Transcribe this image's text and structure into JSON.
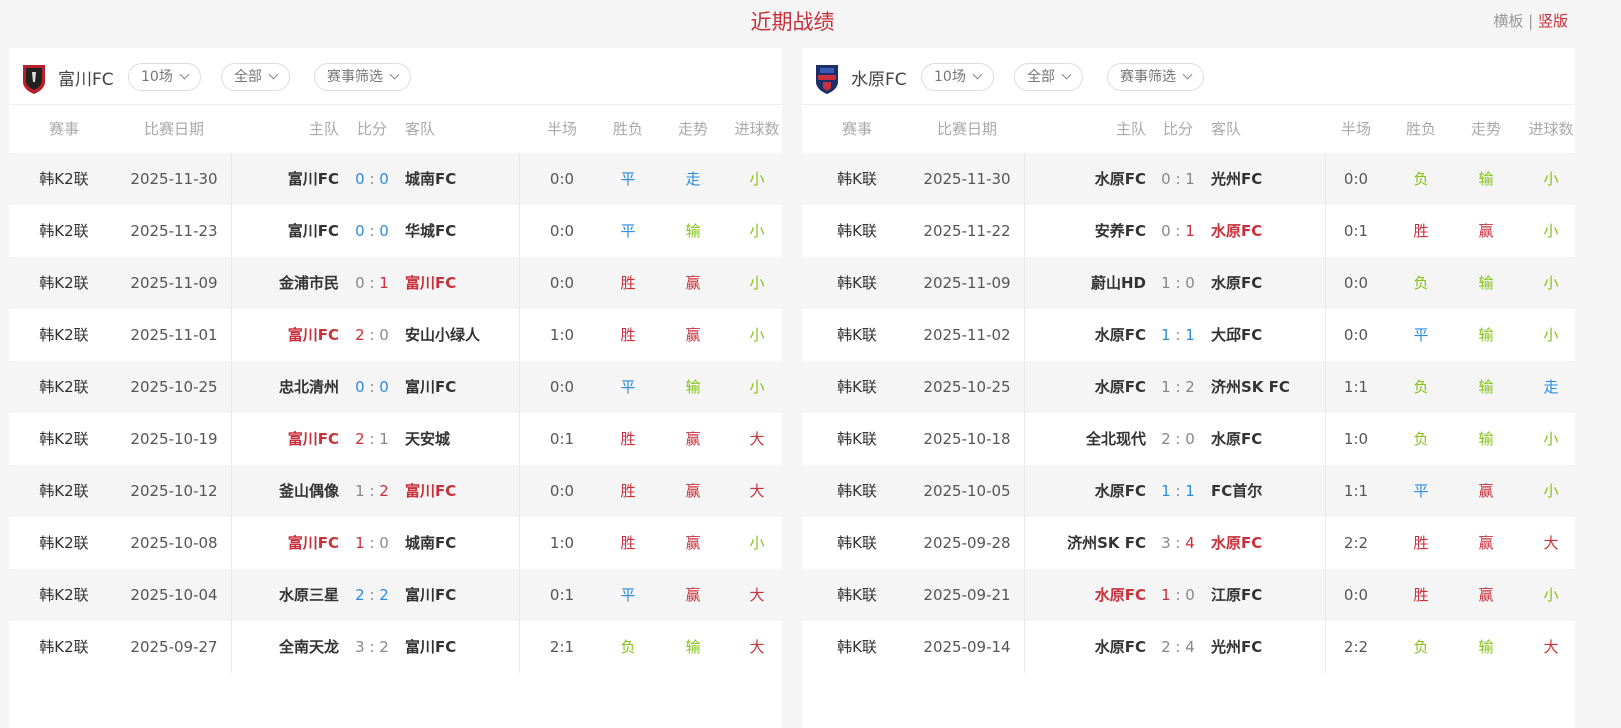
{
  "page": {
    "title": "近期战绩",
    "layout_horizontal": "横板",
    "layout_separator": "|",
    "layout_vertical": "竖版"
  },
  "colors": {
    "red": "#c8303c",
    "blue": "#2b8de0",
    "green": "#86c21a"
  },
  "columns": {
    "comp": "赛事",
    "date": "比赛日期",
    "home": "主队",
    "score": "比分",
    "away": "客队",
    "ht": "半场",
    "result": "胜负",
    "trend": "走势",
    "goals": "进球数"
  },
  "panels": [
    {
      "team": "富川FC",
      "logo_icon": "bucheon-fc-crest-icon",
      "filters": {
        "count": "10场",
        "scope": "全部",
        "competition": "赛事筛选"
      },
      "rows": [
        {
          "comp": "韩K2联",
          "date": "2025-11-30",
          "home": "富川FC",
          "hs": "0",
          "as": "0",
          "away": "城南FC",
          "ht": "0:0",
          "result": "平",
          "trend": "走",
          "goals": "小"
        },
        {
          "comp": "韩K2联",
          "date": "2025-11-23",
          "home": "富川FC",
          "hs": "0",
          "as": "0",
          "away": "华城FC",
          "ht": "0:0",
          "result": "平",
          "trend": "输",
          "goals": "小"
        },
        {
          "comp": "韩K2联",
          "date": "2025-11-09",
          "home": "金浦市民",
          "hs": "0",
          "as": "1",
          "away": "富川FC",
          "ht": "0:0",
          "result": "胜",
          "trend": "赢",
          "goals": "小"
        },
        {
          "comp": "韩K2联",
          "date": "2025-11-01",
          "home": "富川FC",
          "hs": "2",
          "as": "0",
          "away": "安山小绿人",
          "ht": "1:0",
          "result": "胜",
          "trend": "赢",
          "goals": "小"
        },
        {
          "comp": "韩K2联",
          "date": "2025-10-25",
          "home": "忠北清州",
          "hs": "0",
          "as": "0",
          "away": "富川FC",
          "ht": "0:0",
          "result": "平",
          "trend": "输",
          "goals": "小"
        },
        {
          "comp": "韩K2联",
          "date": "2025-10-19",
          "home": "富川FC",
          "hs": "2",
          "as": "1",
          "away": "天安城",
          "ht": "0:1",
          "result": "胜",
          "trend": "赢",
          "goals": "大"
        },
        {
          "comp": "韩K2联",
          "date": "2025-10-12",
          "home": "釜山偶像",
          "hs": "1",
          "as": "2",
          "away": "富川FC",
          "ht": "0:0",
          "result": "胜",
          "trend": "赢",
          "goals": "大"
        },
        {
          "comp": "韩K2联",
          "date": "2025-10-08",
          "home": "富川FC",
          "hs": "1",
          "as": "0",
          "away": "城南FC",
          "ht": "1:0",
          "result": "胜",
          "trend": "赢",
          "goals": "小"
        },
        {
          "comp": "韩K2联",
          "date": "2025-10-04",
          "home": "水原三星",
          "hs": "2",
          "as": "2",
          "away": "富川FC",
          "ht": "0:1",
          "result": "平",
          "trend": "赢",
          "goals": "大"
        },
        {
          "comp": "韩K2联",
          "date": "2025-09-27",
          "home": "全南天龙",
          "hs": "3",
          "as": "2",
          "away": "富川FC",
          "ht": "2:1",
          "result": "负",
          "trend": "输",
          "goals": "大"
        }
      ]
    },
    {
      "team": "水原FC",
      "logo_icon": "suwon-fc-crest-icon",
      "filters": {
        "count": "10场",
        "scope": "全部",
        "competition": "赛事筛选"
      },
      "rows": [
        {
          "comp": "韩K联",
          "date": "2025-11-30",
          "home": "水原FC",
          "hs": "0",
          "as": "1",
          "away": "光州FC",
          "ht": "0:0",
          "result": "负",
          "trend": "输",
          "goals": "小"
        },
        {
          "comp": "韩K联",
          "date": "2025-11-22",
          "home": "安养FC",
          "hs": "0",
          "as": "1",
          "away": "水原FC",
          "ht": "0:1",
          "result": "胜",
          "trend": "赢",
          "goals": "小"
        },
        {
          "comp": "韩K联",
          "date": "2025-11-09",
          "home": "蔚山HD",
          "hs": "1",
          "as": "0",
          "away": "水原FC",
          "ht": "0:0",
          "result": "负",
          "trend": "输",
          "goals": "小"
        },
        {
          "comp": "韩K联",
          "date": "2025-11-02",
          "home": "水原FC",
          "hs": "1",
          "as": "1",
          "away": "大邱FC",
          "ht": "0:0",
          "result": "平",
          "trend": "输",
          "goals": "小"
        },
        {
          "comp": "韩K联",
          "date": "2025-10-25",
          "home": "水原FC",
          "hs": "1",
          "as": "2",
          "away": "济州SK FC",
          "ht": "1:1",
          "result": "负",
          "trend": "输",
          "goals": "走"
        },
        {
          "comp": "韩K联",
          "date": "2025-10-18",
          "home": "全北现代",
          "hs": "2",
          "as": "0",
          "away": "水原FC",
          "ht": "1:0",
          "result": "负",
          "trend": "输",
          "goals": "小"
        },
        {
          "comp": "韩K联",
          "date": "2025-10-05",
          "home": "水原FC",
          "hs": "1",
          "as": "1",
          "away": "FC首尔",
          "ht": "1:1",
          "result": "平",
          "trend": "赢",
          "goals": "小"
        },
        {
          "comp": "韩K联",
          "date": "2025-09-28",
          "home": "济州SK FC",
          "hs": "3",
          "as": "4",
          "away": "水原FC",
          "ht": "2:2",
          "result": "胜",
          "trend": "赢",
          "goals": "大"
        },
        {
          "comp": "韩K联",
          "date": "2025-09-21",
          "home": "水原FC",
          "hs": "1",
          "as": "0",
          "away": "江原FC",
          "ht": "0:0",
          "result": "胜",
          "trend": "赢",
          "goals": "小"
        },
        {
          "comp": "韩K联",
          "date": "2025-09-14",
          "home": "水原FC",
          "hs": "2",
          "as": "4",
          "away": "光州FC",
          "ht": "2:2",
          "result": "负",
          "trend": "输",
          "goals": "大"
        }
      ]
    }
  ]
}
